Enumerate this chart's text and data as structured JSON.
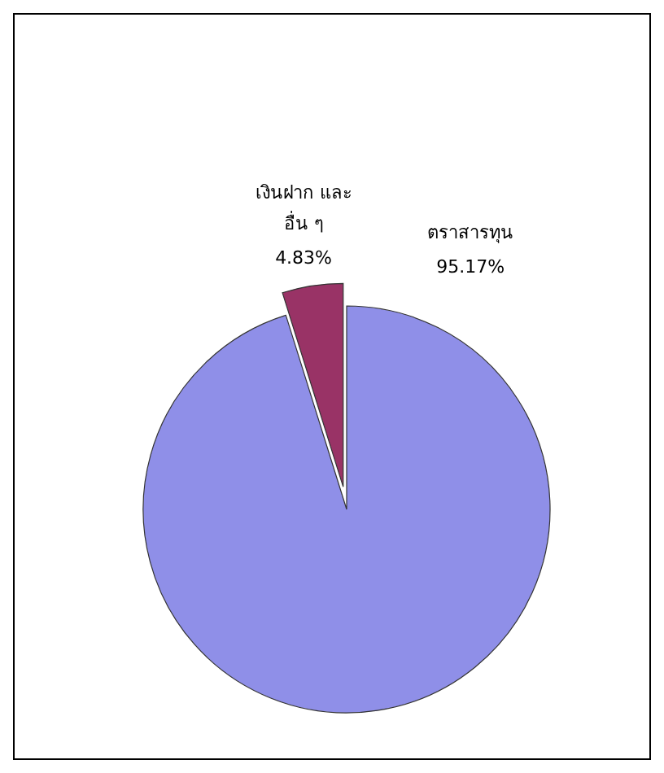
{
  "chart_data": {
    "type": "pie",
    "categories": [
      "ตราสารทุน",
      "เงินฝาก และ อื่น ๆ"
    ],
    "values": [
      95.17,
      4.83
    ],
    "colors": [
      "#8f8fe8",
      "#993366"
    ],
    "value_labels": [
      "95.17%",
      "4.83%"
    ]
  }
}
